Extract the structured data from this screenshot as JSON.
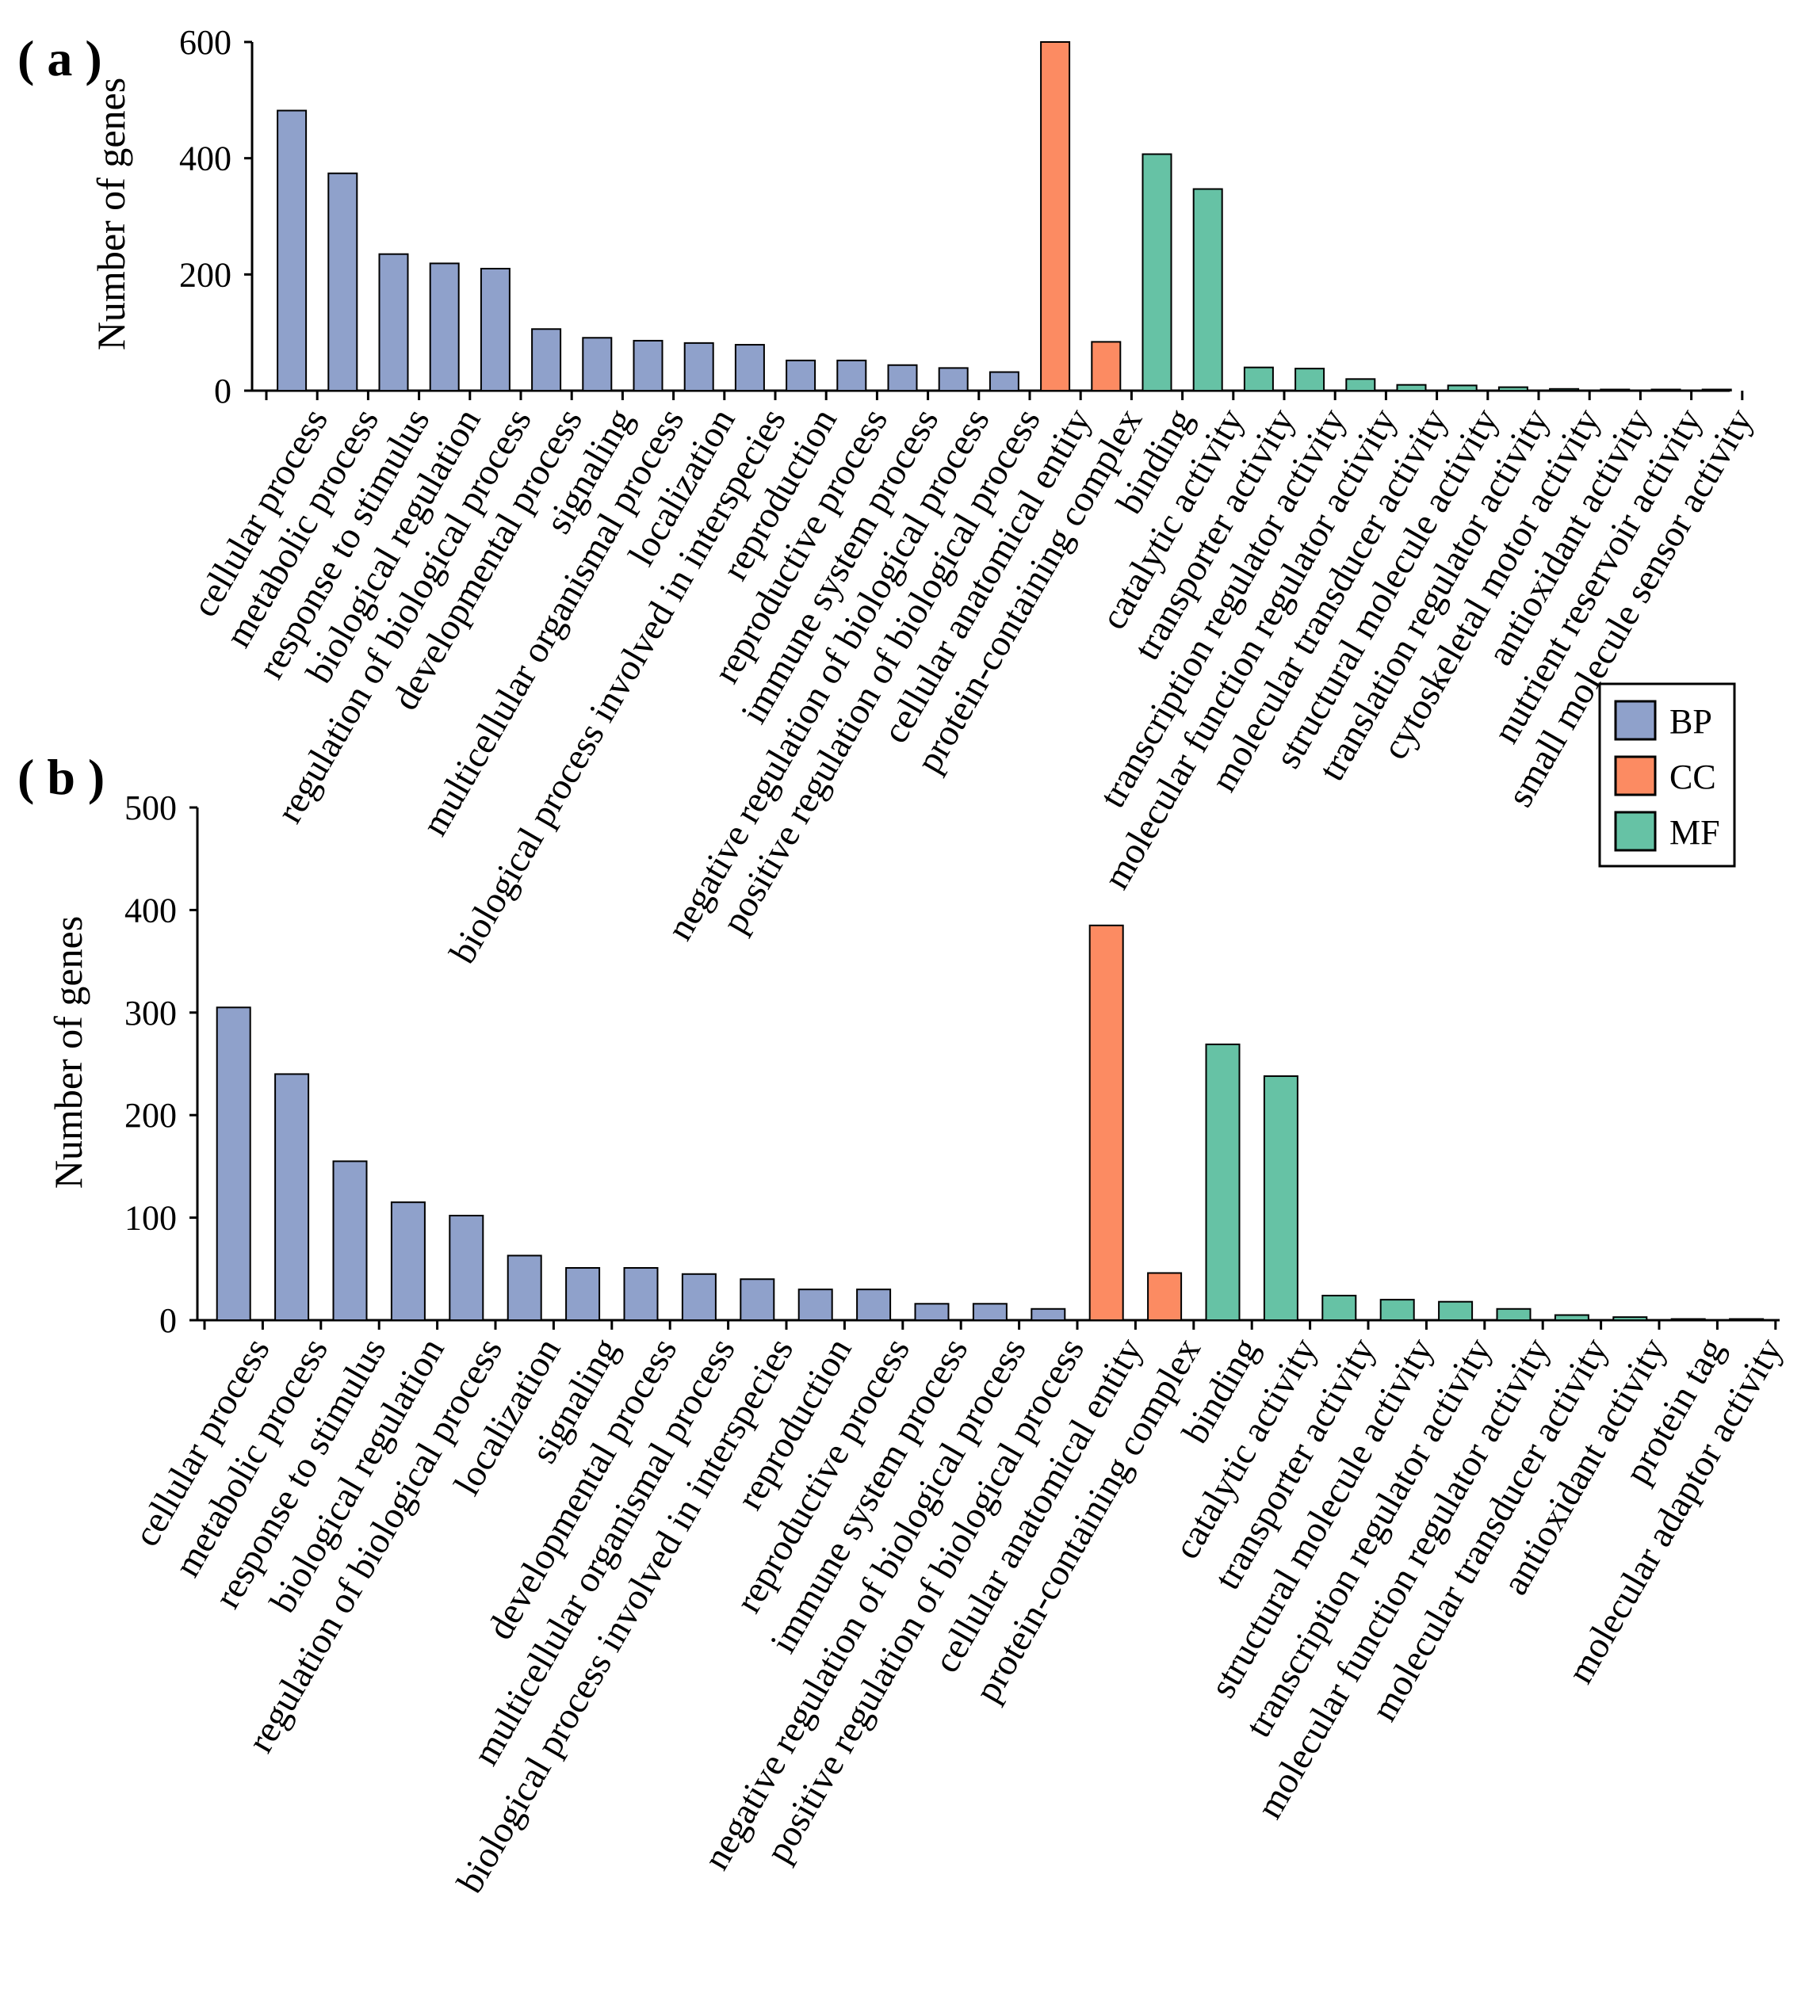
{
  "legend": [
    {
      "name": "BP",
      "color": "#8FA1CB"
    },
    {
      "name": "CC",
      "color": "#FC8B62"
    },
    {
      "name": "MF",
      "color": "#66C2A5"
    }
  ],
  "chart_data": [
    {
      "type": "bar",
      "panel_label": "( a )",
      "title": "",
      "xlabel": "",
      "ylabel": "Number of genes",
      "ylim": [
        0,
        600
      ],
      "yticks": [
        0,
        200,
        400,
        600
      ],
      "categories": [
        "cellular process",
        "metabolic process",
        "response to stimulus",
        "biological regulation",
        "regulation of biological process",
        "developmental process",
        "signaling",
        "multicellular organismal process",
        "localization",
        "biological process involved in interspecies",
        "reproduction",
        "reproductive process",
        "immune system process",
        "negative regulation of biological process",
        "positive regulation of biological process",
        "cellular anatomical entity",
        "protein-containing complex",
        "binding",
        "catalytic activity",
        "transporter activity",
        "transcription regulator activity",
        "molecular function regulator activity",
        "molecular transducer activity",
        "structural molecule activity",
        "translation regulator activity",
        "cytoskeletal motor activity",
        "antioxidant activity",
        "nutrient reservoir activity",
        "small molecule sensor activity"
      ],
      "groups": [
        "BP",
        "BP",
        "BP",
        "BP",
        "BP",
        "BP",
        "BP",
        "BP",
        "BP",
        "BP",
        "BP",
        "BP",
        "BP",
        "BP",
        "BP",
        "CC",
        "CC",
        "MF",
        "MF",
        "MF",
        "MF",
        "MF",
        "MF",
        "MF",
        "MF",
        "MF",
        "MF",
        "MF",
        "MF"
      ],
      "values": [
        482,
        374,
        235,
        219,
        210,
        106,
        91,
        86,
        82,
        79,
        52,
        52,
        44,
        39,
        32,
        600,
        84,
        407,
        347,
        40,
        38,
        20,
        10,
        9,
        6,
        3,
        2,
        1,
        1
      ]
    },
    {
      "type": "bar",
      "panel_label": "( b )",
      "title": "",
      "xlabel": "",
      "ylabel": "Number of genes",
      "ylim": [
        0,
        500
      ],
      "yticks": [
        0,
        100,
        200,
        300,
        400,
        500
      ],
      "categories": [
        "cellular process",
        "metabolic process",
        "response to stimulus",
        "biological regulation",
        "regulation of biological process",
        "localization",
        "signaling",
        "developmental process",
        "multicellular organismal process",
        "biological process involved in interspecies",
        "reproduction",
        "reproductive process",
        "immune system process",
        "negative regulation of biological process",
        "positive regulation of biological process",
        "cellular anatomical entity",
        "protein-containing complex",
        "binding",
        "catalytic activity",
        "transporter activity",
        "structural molecule activity",
        "transcription regulator activity",
        "molecular function regulator activity",
        "molecular transducer activity",
        "antioxidant activity",
        "protein tag",
        "molecular adaptor activity"
      ],
      "groups": [
        "BP",
        "BP",
        "BP",
        "BP",
        "BP",
        "BP",
        "BP",
        "BP",
        "BP",
        "BP",
        "BP",
        "BP",
        "BP",
        "BP",
        "BP",
        "CC",
        "CC",
        "MF",
        "MF",
        "MF",
        "MF",
        "MF",
        "MF",
        "MF",
        "MF",
        "MF",
        "MF"
      ],
      "values": [
        305,
        240,
        155,
        115,
        102,
        63,
        51,
        51,
        45,
        40,
        30,
        30,
        16,
        16,
        11,
        385,
        46,
        269,
        238,
        24,
        20,
        18,
        11,
        5,
        3,
        1,
        1
      ]
    }
  ]
}
